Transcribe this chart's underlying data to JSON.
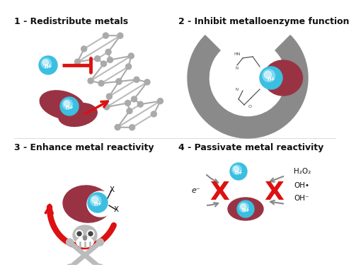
{
  "bg_color": "#ffffff",
  "panel_titles": [
    "1 - Redistribute metals",
    "2 - Inhibit metalloenzyme function",
    "3 - Enhance metal reactivity",
    "4 - Passivate metal reactivity"
  ],
  "title_fontsize": 9,
  "metal_color": "#3bbfe0",
  "protein_color": "#993344",
  "red_color": "#dd1111",
  "gray_color": "#aaaaaa",
  "dark_gray": "#999999",
  "text_color": "#111111"
}
